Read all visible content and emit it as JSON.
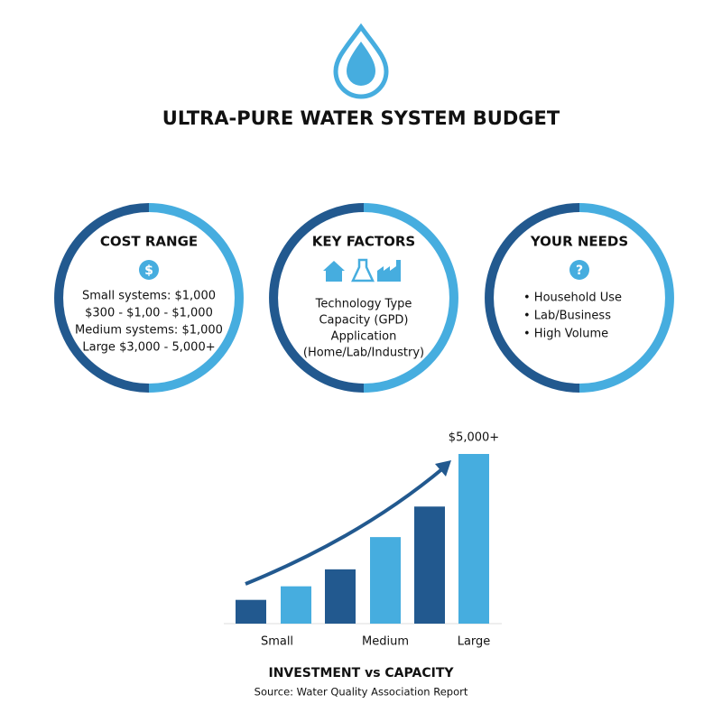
{
  "header": {
    "title": "ULTRA-PURE WATER SYSTEM BUDGET"
  },
  "circles": [
    {
      "title": "COST RANGE",
      "lines": [
        "Small systems: $1,000",
        "$300 - $1,00 - $1,000",
        "Medium systems: $1,000",
        "Large $3,000 - 5,000+"
      ]
    },
    {
      "title": "KEY FACTORS",
      "lines": [
        "Technology Type",
        "Capacity (GPD)",
        "Application",
        "(Home/Lab/Industry)"
      ]
    },
    {
      "title": "YOUR NEEDS",
      "lines": [
        "• Household Use",
        "• Lab/Business",
        "• High Volume"
      ]
    }
  ],
  "chart_data": {
    "type": "bar",
    "title": "INVESTMENT vs CAPACITY",
    "subtitle": "Source: Water Quality Association Report",
    "categories": [
      null,
      "Small",
      null,
      "Medium",
      null,
      "Large"
    ],
    "values": [
      700,
      1100,
      1600,
      2550,
      3450,
      5000
    ],
    "value_labels": [
      null,
      null,
      null,
      null,
      null,
      "$5,000+"
    ],
    "colors": [
      "#22598f",
      "#46addf",
      "#22598f",
      "#46addf",
      "#22598f",
      "#46addf"
    ],
    "ylim": [
      0,
      5000
    ]
  }
}
